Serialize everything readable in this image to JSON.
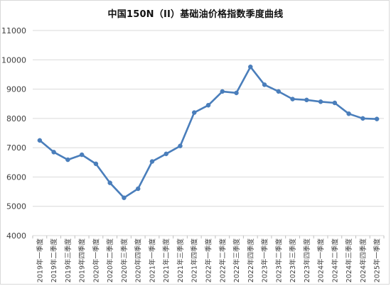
{
  "chart_data": {
    "type": "line",
    "title": "中国150N（II）基础油价格指数季度曲线",
    "xlabel": "",
    "ylabel": "",
    "ylim": [
      4000,
      11000
    ],
    "yticks": [
      4000,
      5000,
      6000,
      7000,
      8000,
      9000,
      10000,
      11000
    ],
    "grid": true,
    "legend": "none",
    "categories": [
      "2019年一季度",
      "2019年二季度",
      "2019年三季度",
      "2019年四季度",
      "2020年一季度",
      "2020年二季度",
      "2020年三季度",
      "2020年四季度",
      "2021年一季度",
      "2021年二季度",
      "2021年三季度",
      "2021年四季度",
      "2022年一季度",
      "2022年二季度",
      "2022年三季度",
      "2022年四季度",
      "2023年一季度",
      "2023年二季度",
      "2023年三季度",
      "2023年四季度",
      "2024年一季度",
      "2024年二季度",
      "2024年三季度",
      "2024年四季度",
      "2025年一季度"
    ],
    "series": [
      {
        "color": "#4a7ebb",
        "values": [
          7250,
          6850,
          6590,
          6760,
          6450,
          5800,
          5290,
          5600,
          6530,
          6790,
          7060,
          8200,
          8450,
          8920,
          8870,
          9760,
          9150,
          8920,
          8660,
          8630,
          8570,
          8530,
          8160,
          8000,
          7980
        ]
      }
    ]
  }
}
